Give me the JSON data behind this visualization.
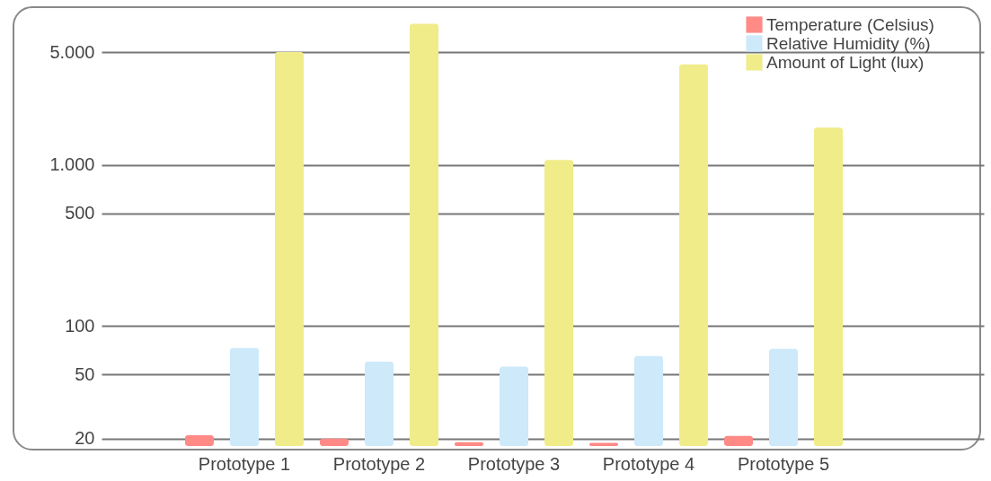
{
  "chart_data": {
    "type": "bar",
    "categories": [
      "Prototype 1",
      "Prototype 2",
      "Prototype 3",
      "Prototype 4",
      "Prototype 5"
    ],
    "series": [
      {
        "name": "Temperature (Celsius)",
        "color": "#ff8a86",
        "values": [
          21,
          20,
          19,
          18.8,
          20.8
        ]
      },
      {
        "name": "Relative Humidity (%)",
        "color": "#cde9fa",
        "values": [
          73,
          60,
          56,
          65,
          72
        ]
      },
      {
        "name": "Amount of Light (lux)",
        "color": "#f0ec8a",
        "values": [
          5000,
          7500,
          1070,
          4200,
          1700
        ]
      }
    ],
    "log": "y",
    "ylim": [
      18,
      9500
    ],
    "yticks": [
      {
        "value": 20,
        "label": "20"
      },
      {
        "value": 50,
        "label": "50"
      },
      {
        "value": 100,
        "label": "100"
      },
      {
        "value": 500,
        "label": "500"
      },
      {
        "value": 1000,
        "label": "1.000"
      },
      {
        "value": 5000,
        "label": "5.000"
      }
    ],
    "grid": "y",
    "legend": "top right"
  }
}
